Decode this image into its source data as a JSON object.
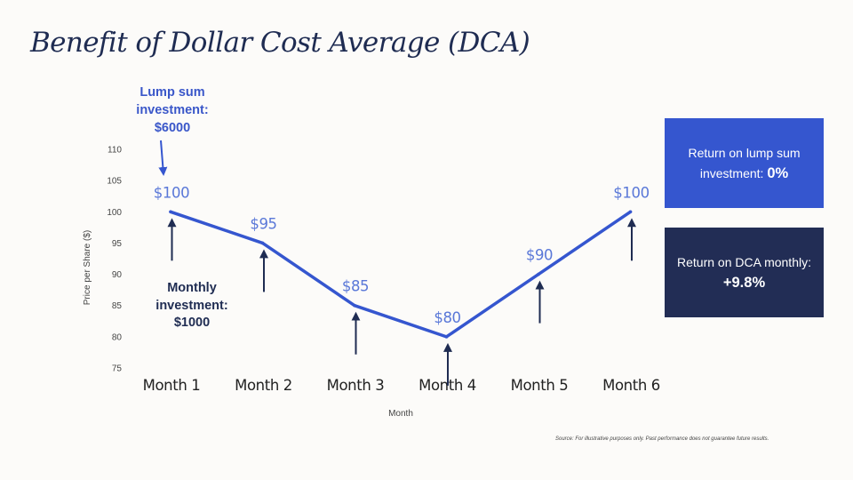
{
  "title": "Benefit of Dollar Cost Average (DCA)",
  "callouts": {
    "lump_sum": {
      "line1": "Lump sum",
      "line2": "investment:",
      "line3": "$6000"
    },
    "monthly": {
      "line1": "Monthly",
      "line2": "investment:",
      "line3": "$1000"
    }
  },
  "result_boxes": {
    "lump_sum": {
      "label_line1": "Return on lump sum",
      "label_line2": "investment:",
      "value": "0%"
    },
    "dca": {
      "label": "Return on DCA monthly:",
      "value": "+9.8%"
    }
  },
  "source_note": "Source: For illustrative purposes only.  Past performance does not guarantee future results.",
  "colors": {
    "line": "#3556cf",
    "price_label": "#5a78d8",
    "arrow": "#1f2c52",
    "lump_box": "#3556cf",
    "dca_box": "#222d55",
    "title": "#1f2c52"
  },
  "chart_data": {
    "type": "line",
    "xlabel": "Month",
    "ylabel": "Price per Share ($)",
    "categories": [
      "Month 1",
      "Month 2",
      "Month 3",
      "Month 4",
      "Month 5",
      "Month 6"
    ],
    "values": [
      100,
      95,
      85,
      80,
      90,
      100
    ],
    "data_labels": [
      "$100",
      "$95",
      "$85",
      "$80",
      "$90",
      "$100"
    ],
    "ylim": [
      75,
      110
    ],
    "yticks": [
      75,
      80,
      85,
      90,
      95,
      100,
      105,
      110
    ],
    "grid": false,
    "monthly_investment_arrows": true,
    "lump_sum_arrow_at": "Month 1"
  }
}
